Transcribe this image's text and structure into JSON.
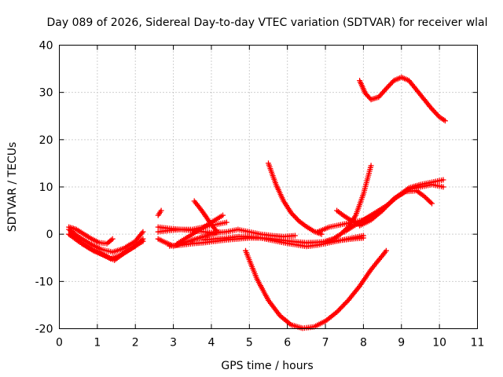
{
  "chart_data": {
    "type": "scatter",
    "title": "Day 089 of 2026, Sidereal Day-to-day VTEC variation (SDTVAR) for receiver wlal",
    "xlabel": "GPS time / hours",
    "ylabel": "SDTVAR / TECUs",
    "xlim": [
      0,
      11
    ],
    "ylim": [
      -20,
      40
    ],
    "xticks": [
      0,
      1,
      2,
      3,
      4,
      5,
      6,
      7,
      8,
      9,
      10,
      11
    ],
    "yticks": [
      -20,
      -10,
      0,
      10,
      20,
      30,
      40
    ],
    "grid": true,
    "marker_color": "#ff0000",
    "series": [
      {
        "x": [
          0.25,
          0.45,
          0.65,
          0.85,
          1.05,
          1.25,
          1.4
        ],
        "y": [
          1.5,
          1.0,
          0.0,
          -1.0,
          -1.8,
          -2.0,
          -1.0
        ]
      },
      {
        "x": [
          0.25,
          0.5,
          0.8,
          1.1,
          1.4,
          1.7,
          2.0,
          2.2
        ],
        "y": [
          1.0,
          -0.5,
          -2.0,
          -3.2,
          -3.8,
          -3.0,
          -1.5,
          0.5
        ]
      },
      {
        "x": [
          0.25,
          0.5,
          0.8,
          1.1,
          1.35,
          1.6,
          1.9,
          2.2
        ],
        "y": [
          0.0,
          -1.5,
          -3.0,
          -4.2,
          -5.2,
          -4.5,
          -3.0,
          -1.5
        ]
      },
      {
        "x": [
          0.3,
          0.6,
          0.9,
          1.2,
          1.45,
          1.7,
          2.0,
          2.2
        ],
        "y": [
          0.5,
          -2.0,
          -3.5,
          -4.5,
          -5.5,
          -4.0,
          -2.5,
          -1.0
        ]
      },
      {
        "x": [
          2.6,
          2.68
        ],
        "y": [
          4.0,
          5.0
        ]
      },
      {
        "x": [
          2.6,
          2.9,
          3.2,
          3.5,
          3.8,
          4.1,
          4.4
        ],
        "y": [
          1.5,
          1.2,
          1.0,
          1.0,
          1.5,
          2.0,
          2.5
        ]
      },
      {
        "x": [
          2.6,
          2.9,
          3.2,
          3.5,
          3.8,
          4.1,
          4.4,
          4.7,
          5.0,
          5.3,
          5.6,
          5.9,
          6.2
        ],
        "y": [
          0.5,
          0.8,
          1.0,
          0.8,
          0.5,
          0.3,
          0.5,
          1.0,
          0.5,
          0.0,
          -0.3,
          -0.5,
          -0.3
        ]
      },
      {
        "x": [
          2.6,
          2.8,
          3.0,
          3.2,
          3.4,
          3.6,
          3.8,
          4.0,
          4.2
        ],
        "y": [
          -1.0,
          -1.8,
          -2.5,
          -2.0,
          -1.5,
          -1.0,
          -0.5,
          0.0,
          0.5
        ]
      },
      {
        "x": [
          2.9,
          3.2,
          3.5,
          3.8,
          4.1,
          4.4,
          4.7,
          5.0,
          5.3,
          5.6,
          5.9,
          6.2,
          6.5,
          6.8,
          7.1,
          7.4,
          7.7,
          8.0
        ],
        "y": [
          -2.5,
          -2.3,
          -2.0,
          -1.8,
          -1.5,
          -1.2,
          -1.0,
          -0.8,
          -0.8,
          -1.0,
          -1.3,
          -1.6,
          -1.8,
          -1.7,
          -1.5,
          -1.3,
          -1.0,
          -0.8
        ]
      },
      {
        "x": [
          3.1,
          3.4,
          3.7,
          4.0,
          4.3
        ],
        "y": [
          -2.0,
          -0.5,
          1.0,
          2.5,
          4.0
        ]
      },
      {
        "x": [
          3.55,
          3.7,
          3.85,
          4.0,
          4.15
        ],
        "y": [
          7.0,
          5.5,
          3.8,
          2.0,
          0.5
        ]
      },
      {
        "x": [
          3.8,
          4.1,
          4.4,
          4.7,
          5.0,
          5.3,
          5.6,
          5.9,
          6.2,
          6.5,
          6.8,
          7.1,
          7.4,
          7.7,
          8.0
        ],
        "y": [
          -1.2,
          -1.0,
          -0.8,
          -0.5,
          -0.5,
          -0.8,
          -1.3,
          -1.8,
          -2.2,
          -2.6,
          -2.3,
          -1.8,
          -1.3,
          -0.8,
          -0.3
        ]
      },
      {
        "x": [
          4.9,
          5.2,
          5.5,
          5.8,
          6.1,
          6.4,
          6.7,
          7.0,
          7.3,
          7.6,
          7.9,
          8.2,
          8.6
        ],
        "y": [
          -3.5,
          -9.5,
          -14.0,
          -17.2,
          -19.2,
          -19.9,
          -19.6,
          -18.4,
          -16.5,
          -14.0,
          -11.0,
          -7.5,
          -3.5
        ]
      },
      {
        "x": [
          5.5,
          5.7,
          5.9,
          6.1,
          6.3,
          6.5,
          6.7,
          6.9
        ],
        "y": [
          15.0,
          10.5,
          7.0,
          4.5,
          2.8,
          1.6,
          0.6,
          0.0
        ]
      },
      {
        "x": [
          6.8,
          7.1,
          7.4,
          7.7,
          8.0,
          8.3,
          8.6,
          8.9,
          9.2,
          9.5,
          9.8,
          10.1
        ],
        "y": [
          0.5,
          1.5,
          2.0,
          2.5,
          3.0,
          4.2,
          6.0,
          8.0,
          9.8,
          10.5,
          11.0,
          11.5
        ]
      },
      {
        "x": [
          7.0,
          7.2,
          7.4,
          7.6,
          7.8,
          8.0,
          8.2
        ],
        "y": [
          -1.5,
          -1.0,
          0.0,
          1.5,
          4.0,
          8.5,
          14.5
        ]
      },
      {
        "x": [
          7.3,
          7.5,
          7.7,
          7.9
        ],
        "y": [
          5.0,
          3.8,
          2.8,
          2.0
        ]
      },
      {
        "x": [
          7.5,
          7.7,
          7.9,
          8.1,
          8.3,
          8.6,
          8.9,
          9.2,
          9.5,
          9.8,
          10.1
        ],
        "y": [
          0.5,
          1.5,
          2.5,
          3.5,
          4.5,
          6.0,
          8.0,
          9.5,
          10.0,
          10.5,
          10.0
        ]
      },
      {
        "x": [
          7.9,
          8.2,
          8.5,
          8.8,
          9.1,
          9.4,
          9.6,
          9.8
        ],
        "y": [
          1.8,
          3.0,
          5.0,
          7.5,
          9.0,
          9.2,
          8.0,
          6.5
        ]
      },
      {
        "x": [
          7.9,
          8.05,
          8.2,
          8.4,
          8.6,
          8.8,
          9.0,
          9.2,
          9.4,
          9.6,
          9.8,
          10.0,
          10.15
        ],
        "y": [
          32.5,
          29.8,
          28.5,
          29.0,
          30.8,
          32.5,
          33.2,
          32.5,
          30.5,
          28.5,
          26.5,
          24.8,
          24.0
        ]
      }
    ]
  }
}
